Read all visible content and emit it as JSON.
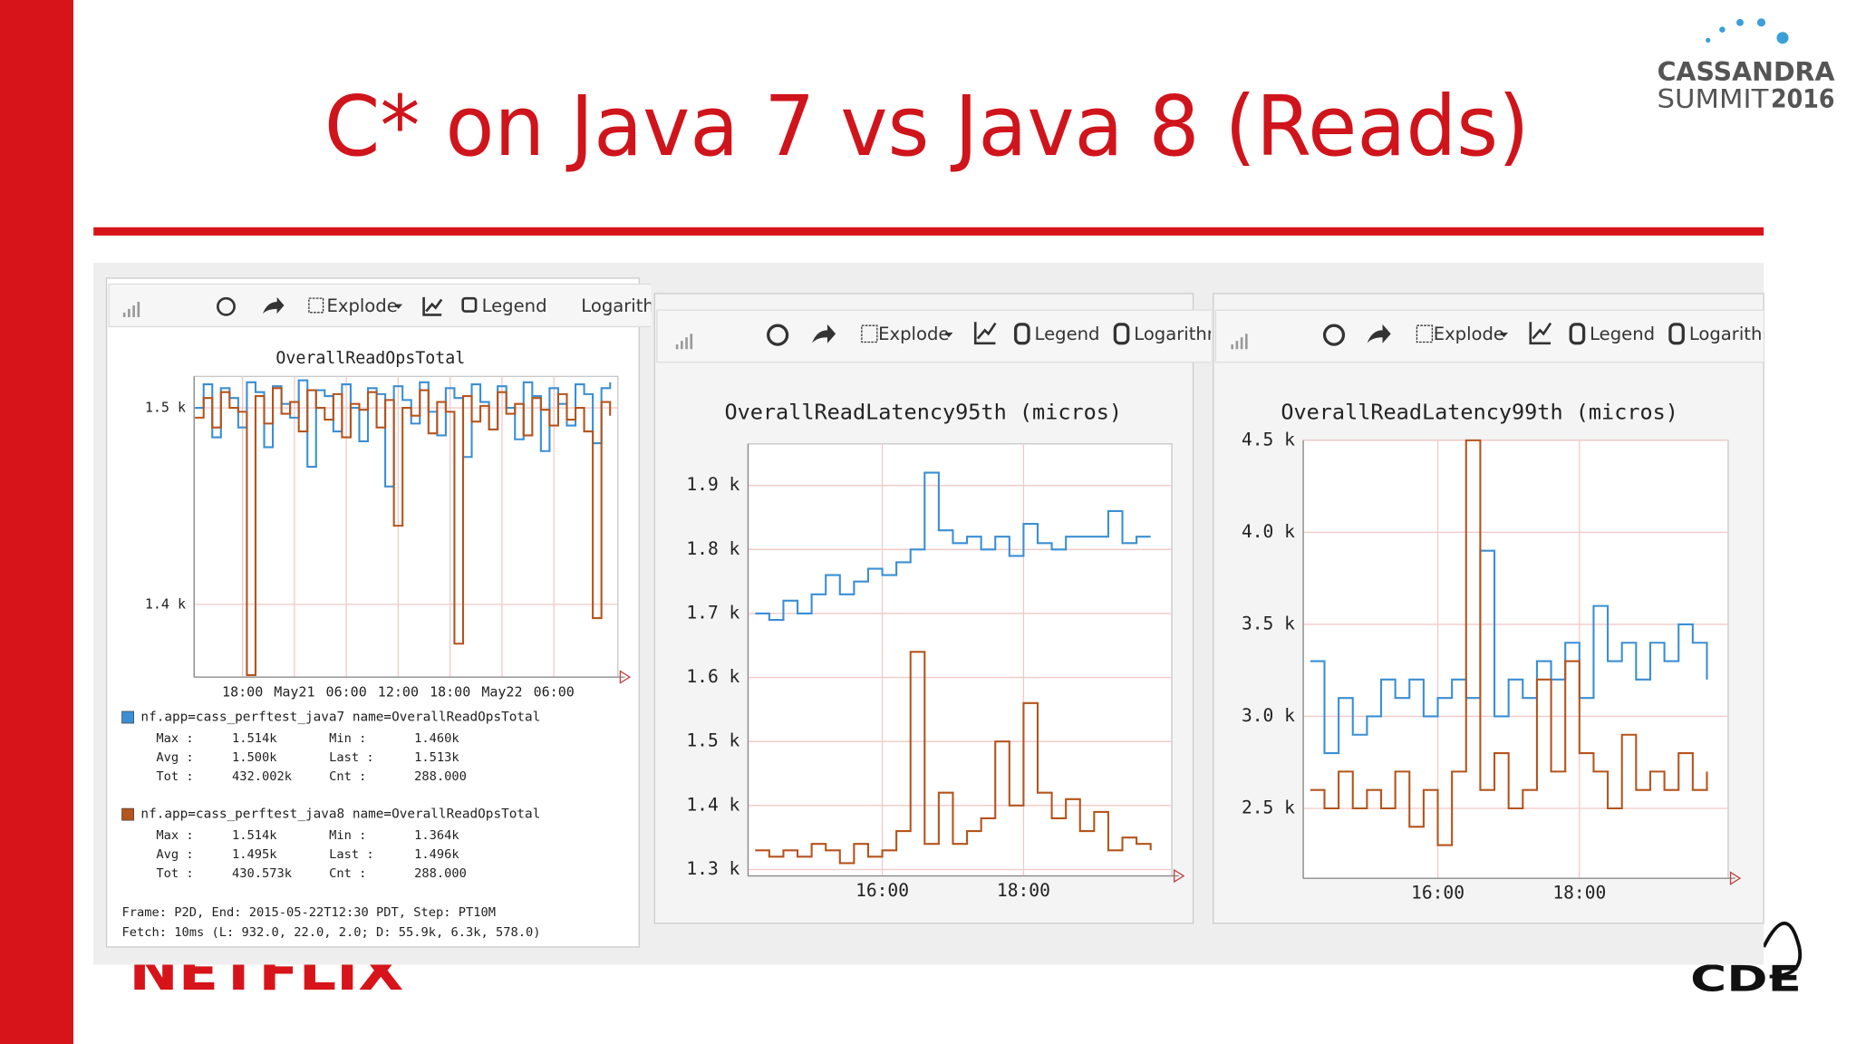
{
  "slide": {
    "title": "C* on Java 7 vs Java 8 (Reads)",
    "logo_top": [
      "CASSANDRA",
      "SUMMIT",
      "2016"
    ],
    "logo_left": "NETFLIX",
    "logo_right": "CDE"
  },
  "toolbars": [
    {
      "explode": "Explode",
      "legend": "Legend",
      "log": "Logarithmic"
    },
    {
      "explode": "Explode",
      "legend": "Legend",
      "log": "Logarithmic"
    },
    {
      "explode": "Explode",
      "legend": "Legend",
      "log": "Logarithmic"
    }
  ],
  "chart_data": [
    {
      "type": "line",
      "interpolation": "step",
      "title": "OverallReadOpsTotal",
      "x": [
        12.5,
        13.5,
        14.5,
        15.5,
        16.5,
        17.5,
        18.5,
        19.5,
        20.5,
        21.5,
        22.5,
        23.5,
        24.5,
        25.5,
        26.5,
        27.5,
        28.5,
        29.5,
        30.5,
        31.5,
        32.5,
        33.5,
        34.5,
        35.5,
        36.5,
        37.5,
        38.5,
        39.5,
        40.5,
        41.5,
        42.5,
        43.5,
        44.5,
        45.5,
        46.5,
        47.5,
        48.5,
        49.5,
        50.5,
        51.5,
        52.5,
        53.5,
        54.5,
        55.5,
        56.5,
        57.5,
        58.5,
        59.5,
        60.5
      ],
      "xlim": [
        12.4,
        61.4
      ],
      "xticks": [
        {
          "value": 18,
          "label": "18:00"
        },
        {
          "value": 24,
          "label": "May21"
        },
        {
          "value": 30,
          "label": "06:00"
        },
        {
          "value": 36,
          "label": "12:00"
        },
        {
          "value": 42,
          "label": "18:00"
        },
        {
          "value": 48,
          "label": "May22"
        },
        {
          "value": 54,
          "label": "06:00"
        }
      ],
      "ylim": [
        1363,
        1516
      ],
      "yticks": [
        {
          "value": 1400,
          "label": "1.4 k"
        },
        {
          "value": 1500,
          "label": "1.5 k"
        }
      ],
      "grid": true,
      "series": [
        {
          "name": "nf.app=cass_perftest_java7 name=OverallReadOpsTotal",
          "color": "#3a8fd4",
          "values": [
            1500,
            1512,
            1485,
            1510,
            1505,
            1490,
            1513,
            1508,
            1480,
            1511,
            1502,
            1495,
            1514,
            1470,
            1509,
            1506,
            1488,
            1512,
            1500,
            1483,
            1510,
            1507,
            1460,
            1511,
            1504,
            1492,
            1513,
            1498,
            1486,
            1510,
            1505,
            1475,
            1512,
            1503,
            1489,
            1511,
            1500,
            1484,
            1513,
            1506,
            1478,
            1510,
            1502,
            1491,
            1512,
            1507,
            1482,
            1510,
            1513
          ],
          "stats": [
            [
              "Max :",
              "1.514k",
              "Min :",
              "1.460k"
            ],
            [
              "Avg :",
              "1.500k",
              "Last :",
              "1.513k"
            ],
            [
              "Tot :",
              "432.002k",
              "Cnt :",
              "288.000"
            ]
          ]
        },
        {
          "name": "nf.app=cass_perftest_java8 name=OverallReadOpsTotal",
          "color": "#b5541c",
          "values": [
            1495,
            1505,
            1490,
            1508,
            1500,
            1498,
            1364,
            1506,
            1492,
            1510,
            1497,
            1503,
            1488,
            1509,
            1500,
            1494,
            1507,
            1485,
            1502,
            1499,
            1508,
            1490,
            1504,
            1440,
            1500,
            1496,
            1509,
            1487,
            1503,
            1498,
            1380,
            1506,
            1493,
            1501,
            1489,
            1508,
            1497,
            1502,
            1486,
            1505,
            1499,
            1491,
            1507,
            1494,
            1500,
            1488,
            1393,
            1503,
            1496
          ],
          "stats": [
            [
              "Max :",
              "1.514k",
              "Min :",
              "1.364k"
            ],
            [
              "Avg :",
              "1.495k",
              "Last :",
              "1.496k"
            ],
            [
              "Tot :",
              "430.573k",
              "Cnt :",
              "288.000"
            ]
          ]
        }
      ],
      "frame": "Frame: P2D, End: 2015-05-22T12:30 PDT, Step: PT10M",
      "fetch": "Fetch: 10ms (L: 932.0, 22.0, 2.0; D: 55.9k, 6.3k, 578.0)"
    },
    {
      "type": "line",
      "interpolation": "step",
      "title": "OverallReadLatency95th (micros)",
      "x": [
        14.2,
        14.4,
        14.6,
        14.8,
        15.0,
        15.2,
        15.4,
        15.6,
        15.8,
        16.0,
        16.2,
        16.4,
        16.6,
        16.8,
        17.0,
        17.2,
        17.4,
        17.6,
        17.8,
        18.0,
        18.2,
        18.4,
        18.6,
        18.8,
        19.0,
        19.2,
        19.4,
        19.6,
        19.8
      ],
      "xlim": [
        14.1,
        20.1
      ],
      "xticks": [
        {
          "value": 16,
          "label": "16:00"
        },
        {
          "value": 18,
          "label": "18:00"
        }
      ],
      "ylim": [
        1290,
        1965
      ],
      "yticks": [
        {
          "value": 1300,
          "label": "1.3 k"
        },
        {
          "value": 1400,
          "label": "1.4 k"
        },
        {
          "value": 1500,
          "label": "1.5 k"
        },
        {
          "value": 1600,
          "label": "1.6 k"
        },
        {
          "value": 1700,
          "label": "1.7 k"
        },
        {
          "value": 1800,
          "label": "1.8 k"
        },
        {
          "value": 1900,
          "label": "1.9 k"
        }
      ],
      "grid": true,
      "series": [
        {
          "color": "#3a8fd4",
          "values": [
            1700,
            1690,
            1720,
            1700,
            1730,
            1760,
            1730,
            1750,
            1770,
            1760,
            1780,
            1800,
            1920,
            1830,
            1810,
            1820,
            1800,
            1820,
            1790,
            1840,
            1810,
            1800,
            1820,
            1820,
            1820,
            1860,
            1810,
            1820,
            1820
          ]
        },
        {
          "color": "#b5541c",
          "values": [
            1330,
            1320,
            1330,
            1320,
            1340,
            1330,
            1310,
            1340,
            1320,
            1330,
            1360,
            1640,
            1340,
            1420,
            1340,
            1360,
            1380,
            1500,
            1400,
            1560,
            1420,
            1380,
            1410,
            1360,
            1390,
            1330,
            1350,
            1340,
            1330
          ]
        }
      ]
    },
    {
      "type": "line",
      "interpolation": "step",
      "title": "OverallReadLatency99th (micros)",
      "x": [
        14.2,
        14.4,
        14.6,
        14.8,
        15.0,
        15.2,
        15.4,
        15.6,
        15.8,
        16.0,
        16.2,
        16.4,
        16.6,
        16.8,
        17.0,
        17.2,
        17.4,
        17.6,
        17.8,
        18.0,
        18.2,
        18.4,
        18.6,
        18.8,
        19.0,
        19.2,
        19.4,
        19.6,
        19.8
      ],
      "xlim": [
        14.1,
        20.1
      ],
      "xticks": [
        {
          "value": 16,
          "label": "16:00"
        },
        {
          "value": 18,
          "label": "18:00"
        }
      ],
      "ylim": [
        2120,
        4500
      ],
      "yticks": [
        {
          "value": 2500,
          "label": "2.5 k"
        },
        {
          "value": 3000,
          "label": "3.0 k"
        },
        {
          "value": 3500,
          "label": "3.5 k"
        },
        {
          "value": 4000,
          "label": "4.0 k"
        },
        {
          "value": 4500,
          "label": "4.5 k"
        }
      ],
      "grid": true,
      "series": [
        {
          "color": "#3a8fd4",
          "values": [
            3300,
            2800,
            3100,
            2900,
            3000,
            3200,
            3100,
            3200,
            3000,
            3100,
            3200,
            3100,
            3900,
            3000,
            3200,
            3100,
            3300,
            3200,
            3400,
            3100,
            3600,
            3300,
            3400,
            3200,
            3400,
            3300,
            3500,
            3400,
            3200
          ]
        },
        {
          "color": "#b5541c",
          "values": [
            2600,
            2500,
            2700,
            2500,
            2600,
            2500,
            2700,
            2400,
            2600,
            2300,
            2700,
            4500,
            2600,
            2800,
            2500,
            2600,
            3200,
            2700,
            3300,
            2800,
            2700,
            2500,
            2900,
            2600,
            2700,
            2600,
            2800,
            2600,
            2700
          ]
        }
      ]
    }
  ]
}
